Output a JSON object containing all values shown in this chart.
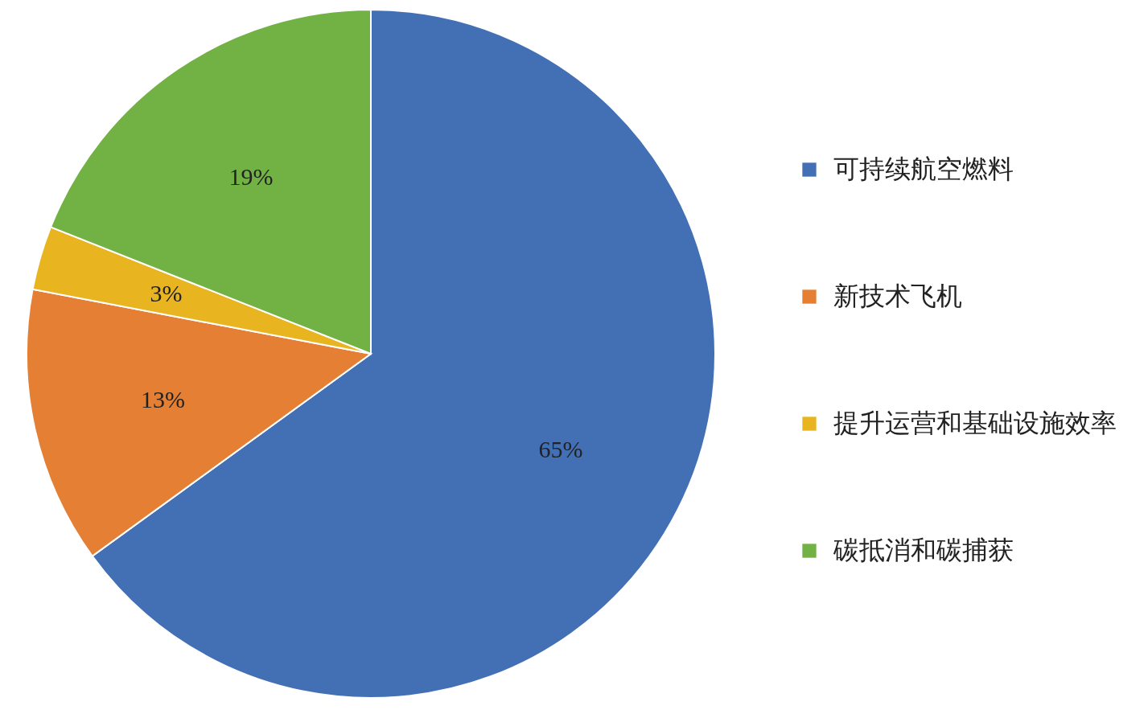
{
  "chart_data": {
    "type": "pie",
    "categories": [
      "可持续航空燃料",
      "新技术飞机",
      "提升运营和基础设施效率",
      "碳抵消和碳捕获"
    ],
    "values": [
      65,
      13,
      3,
      19
    ],
    "colors": [
      "#4370b5",
      "#e57f33",
      "#e8b521",
      "#72b244"
    ],
    "value_labels": [
      "65%",
      "13%",
      "3%",
      "19%"
    ],
    "legend": "right"
  }
}
